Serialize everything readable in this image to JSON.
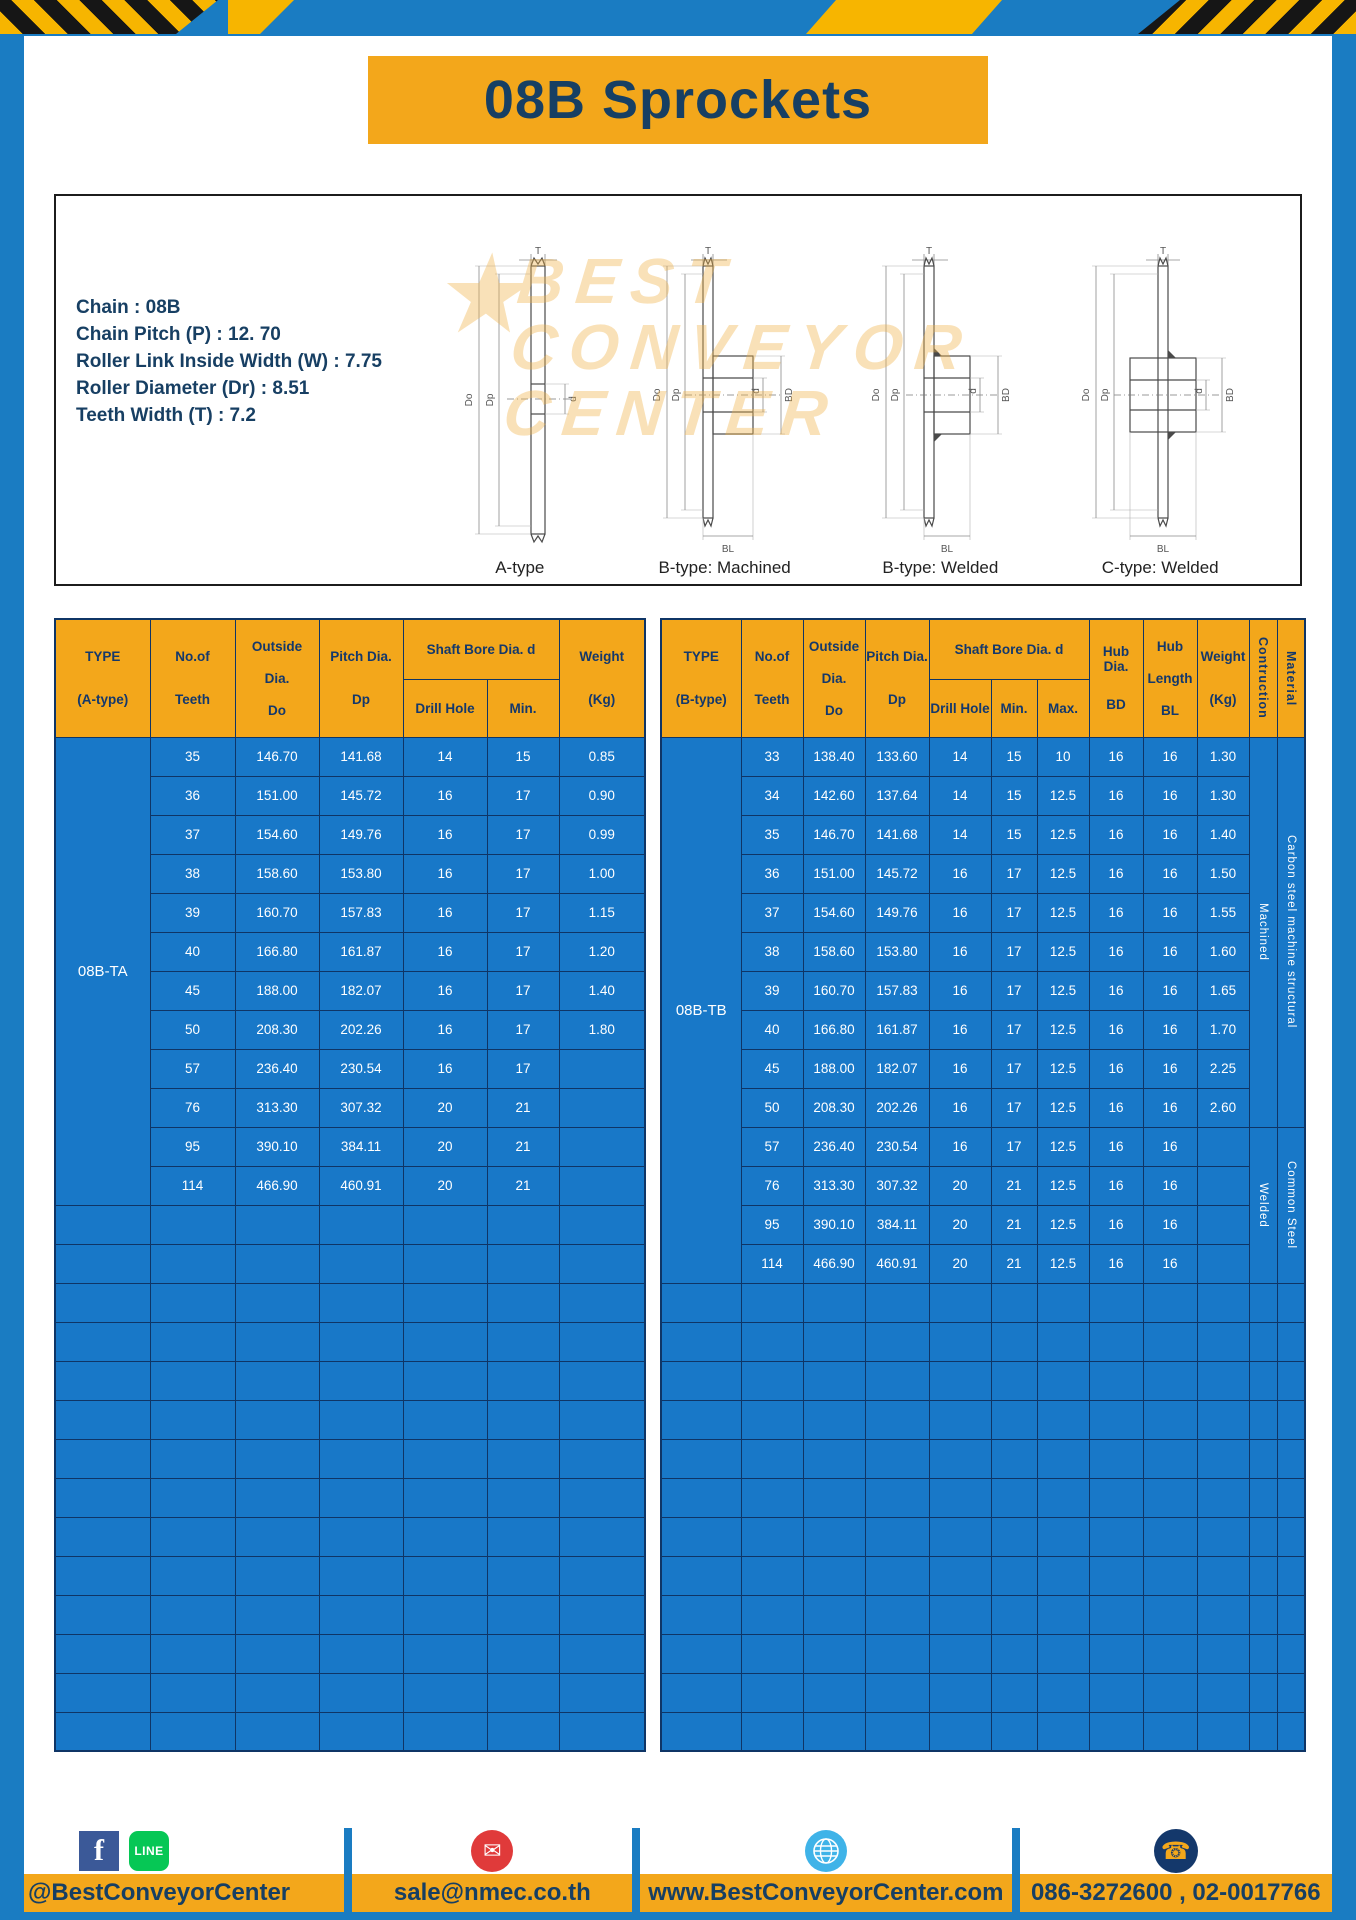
{
  "title": "08B Sprockets",
  "specs": {
    "lines": [
      "Chain  :  08B",
      "Chain Pitch (P)  :  12. 70",
      "Roller Link Inside Width (W)  :  7.75",
      "Roller Diameter (Dr)  :  8.51",
      "Teeth Width (T)  :  7.2"
    ]
  },
  "diagrams": {
    "watermark_star": "★",
    "watermark_lines": [
      "BEST",
      "CONVEYOR",
      "CENTER"
    ],
    "figures": [
      {
        "label": "A-type",
        "dims": {
          "t": "T",
          "do": "Do",
          "dp": "Dp",
          "d": "d"
        }
      },
      {
        "label": "B-type: Machined",
        "dims": {
          "t": "T",
          "do": "Do",
          "dp": "Dp",
          "d": "d",
          "bd": "BD",
          "bl": "BL"
        }
      },
      {
        "label": "B-type: Welded",
        "dims": {
          "t": "T",
          "do": "Do",
          "dp": "Dp",
          "d": "d",
          "bd": "BD",
          "bl": "BL"
        }
      },
      {
        "label": "C-type: Welded",
        "dims": {
          "t": "T",
          "do": "Do",
          "dp": "Dp",
          "d": "d",
          "bd": "BD",
          "bl": "BL"
        }
      }
    ]
  },
  "tableA": {
    "headers": {
      "type": [
        "TYPE",
        "(A-type)"
      ],
      "teeth": [
        "No.of",
        "Teeth"
      ],
      "outside": [
        "Outside",
        "Dia.",
        "Do"
      ],
      "pitch": [
        "Pitch Dia.",
        "Dp"
      ],
      "shaft_bore": "Shaft Bore Dia. d",
      "drill": "Drill Hole",
      "min": "Min.",
      "weight": [
        "Weight",
        "(Kg)"
      ]
    },
    "type_label": "08B-TA",
    "rows": [
      [
        "35",
        "146.70",
        "141.68",
        "14",
        "15",
        "0.85"
      ],
      [
        "36",
        "151.00",
        "145.72",
        "16",
        "17",
        "0.90"
      ],
      [
        "37",
        "154.60",
        "149.76",
        "16",
        "17",
        "0.99"
      ],
      [
        "38",
        "158.60",
        "153.80",
        "16",
        "17",
        "1.00"
      ],
      [
        "39",
        "160.70",
        "157.83",
        "16",
        "17",
        "1.15"
      ],
      [
        "40",
        "166.80",
        "161.87",
        "16",
        "17",
        "1.20"
      ],
      [
        "45",
        "188.00",
        "182.07",
        "16",
        "17",
        "1.40"
      ],
      [
        "50",
        "208.30",
        "202.26",
        "16",
        "17",
        "1.80"
      ],
      [
        "57",
        "236.40",
        "230.54",
        "16",
        "17",
        ""
      ],
      [
        "76",
        "313.30",
        "307.32",
        "20",
        "21",
        ""
      ],
      [
        "95",
        "390.10",
        "384.11",
        "20",
        "21",
        ""
      ],
      [
        "114",
        "466.90",
        "460.91",
        "20",
        "21",
        ""
      ]
    ],
    "empty_rows": 14
  },
  "tableB": {
    "headers": {
      "type": [
        "TYPE",
        "(B-type)"
      ],
      "teeth": [
        "No.of",
        "Teeth"
      ],
      "outside": [
        "Outside",
        "Dia.",
        "Do"
      ],
      "pitch": [
        "Pitch Dia.",
        "Dp"
      ],
      "shaft_bore": "Shaft Bore Dia. d",
      "drill": "Drill Hole",
      "min": "Min.",
      "max": "Max.",
      "hub_dia": [
        "Hub Dia.",
        "BD"
      ],
      "hub_len": [
        "Hub",
        "Length",
        "BL"
      ],
      "weight": [
        "Weight",
        "(Kg)"
      ],
      "construction": "Contruction",
      "material": "Material"
    },
    "type_label": "08B-TB",
    "rows": [
      [
        "33",
        "138.40",
        "133.60",
        "14",
        "15",
        "10",
        "16",
        "16",
        "1.30"
      ],
      [
        "34",
        "142.60",
        "137.64",
        "14",
        "15",
        "12.5",
        "16",
        "16",
        "1.30"
      ],
      [
        "35",
        "146.70",
        "141.68",
        "14",
        "15",
        "12.5",
        "16",
        "16",
        "1.40"
      ],
      [
        "36",
        "151.00",
        "145.72",
        "16",
        "17",
        "12.5",
        "16",
        "16",
        "1.50"
      ],
      [
        "37",
        "154.60",
        "149.76",
        "16",
        "17",
        "12.5",
        "16",
        "16",
        "1.55"
      ],
      [
        "38",
        "158.60",
        "153.80",
        "16",
        "17",
        "12.5",
        "16",
        "16",
        "1.60"
      ],
      [
        "39",
        "160.70",
        "157.83",
        "16",
        "17",
        "12.5",
        "16",
        "16",
        "1.65"
      ],
      [
        "40",
        "166.80",
        "161.87",
        "16",
        "17",
        "12.5",
        "16",
        "16",
        "1.70"
      ],
      [
        "45",
        "188.00",
        "182.07",
        "16",
        "17",
        "12.5",
        "16",
        "16",
        "2.25"
      ],
      [
        "50",
        "208.30",
        "202.26",
        "16",
        "17",
        "12.5",
        "16",
        "16",
        "2.60"
      ],
      [
        "57",
        "236.40",
        "230.54",
        "16",
        "17",
        "12.5",
        "16",
        "16",
        ""
      ],
      [
        "76",
        "313.30",
        "307.32",
        "20",
        "21",
        "12.5",
        "16",
        "16",
        ""
      ],
      [
        "95",
        "390.10",
        "384.11",
        "20",
        "21",
        "12.5",
        "16",
        "16",
        ""
      ],
      [
        "114",
        "466.90",
        "460.91",
        "20",
        "21",
        "12.5",
        "16",
        "16",
        ""
      ]
    ],
    "construction_groups": [
      {
        "label": "Machined",
        "rows": 10
      },
      {
        "label": "Welded",
        "rows": 4
      }
    ],
    "material_groups": [
      {
        "label": "Carbon steel  machine  structural",
        "rows": 10
      },
      {
        "label": "Common  Steel",
        "rows": 4
      }
    ],
    "empty_rows": 12
  },
  "footer": {
    "facebook_label": "f",
    "line_label": "LINE",
    "email_glyph": "✉",
    "phone_glyph": "☎",
    "social": "@BestConveyorCenter",
    "email": "sale@nmec.co.th",
    "website": "www.BestConveyorCenter.com",
    "phone": "086-3272600 , 02-0017766"
  },
  "colors": {
    "frame_blue": "#1a7cc2",
    "gold": "#f3a71b",
    "navy": "#173f63",
    "table_blue": "#1878c8",
    "border_navy": "#0f3566"
  }
}
